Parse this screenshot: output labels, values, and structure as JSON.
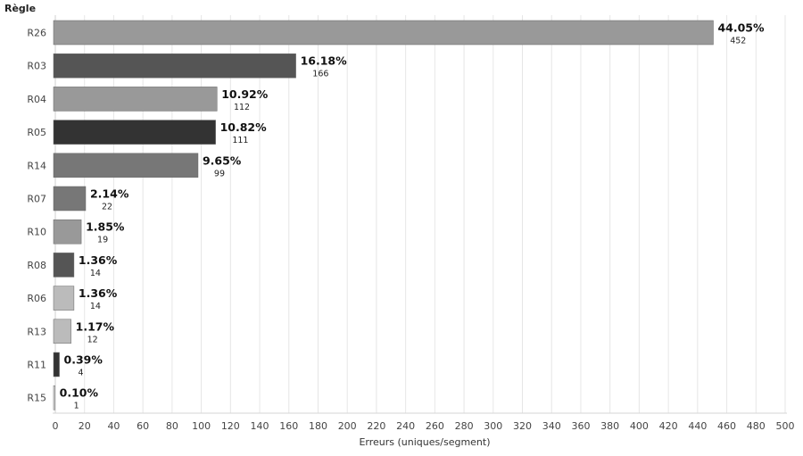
{
  "chart_data": {
    "type": "bar",
    "orientation": "horizontal",
    "ylabel": "Règle",
    "xlabel": "Erreurs (uniques/segment)",
    "xlim": [
      0,
      500
    ],
    "xticks": [
      0,
      20,
      40,
      60,
      80,
      100,
      120,
      140,
      160,
      180,
      200,
      220,
      240,
      260,
      280,
      300,
      320,
      340,
      360,
      380,
      400,
      420,
      440,
      460,
      480,
      500
    ],
    "grid": "vertical",
    "categories": [
      "R26",
      "R03",
      "R04",
      "R05",
      "R14",
      "R07",
      "R10",
      "R08",
      "R06",
      "R13",
      "R11",
      "R15"
    ],
    "values": [
      452,
      166,
      112,
      111,
      99,
      22,
      19,
      14,
      14,
      12,
      4,
      1
    ],
    "percent_labels": [
      "44.05%",
      "16.18%",
      "10.92%",
      "10.82%",
      "9.65%",
      "2.14%",
      "1.85%",
      "1.36%",
      "1.36%",
      "1.17%",
      "0.39%",
      "0.10%"
    ],
    "count_labels": [
      "452",
      "166",
      "112",
      "111",
      "99",
      "22",
      "19",
      "14",
      "14",
      "12",
      "4",
      "1"
    ],
    "bar_colors": [
      "#999999",
      "#555555",
      "#999999",
      "#333333",
      "#777777",
      "#777777",
      "#999999",
      "#555555",
      "#bbbbbb",
      "#bbbbbb",
      "#333333",
      "#dddddd"
    ]
  }
}
